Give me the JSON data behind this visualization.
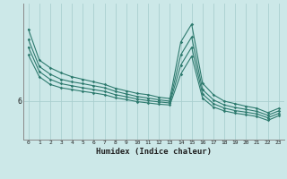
{
  "title": "",
  "xlabel": "Humidex (Indice chaleur)",
  "bg_color": "#cce8e8",
  "grid_color": "#aacfcf",
  "line_color": "#2d7a6e",
  "xlim": [
    -0.5,
    23.5
  ],
  "ylim": [
    4.5,
    9.8
  ],
  "yticks": [
    6
  ],
  "xticks": [
    0,
    1,
    2,
    3,
    4,
    5,
    6,
    7,
    8,
    9,
    10,
    11,
    12,
    13,
    14,
    15,
    16,
    17,
    18,
    19,
    20,
    21,
    22,
    23
  ],
  "series": [
    [
      8.8,
      7.6,
      7.3,
      7.1,
      6.95,
      6.85,
      6.75,
      6.65,
      6.5,
      6.4,
      6.3,
      6.25,
      6.15,
      6.1,
      8.3,
      9.0,
      6.7,
      6.25,
      6.0,
      5.9,
      5.8,
      5.72,
      5.55,
      5.72
    ],
    [
      8.4,
      7.35,
      7.05,
      6.85,
      6.75,
      6.68,
      6.6,
      6.52,
      6.38,
      6.28,
      6.18,
      6.12,
      6.05,
      6.0,
      7.8,
      8.5,
      6.45,
      6.05,
      5.85,
      5.75,
      5.68,
      5.6,
      5.45,
      5.62
    ],
    [
      8.1,
      7.15,
      6.85,
      6.68,
      6.6,
      6.52,
      6.45,
      6.38,
      6.25,
      6.17,
      6.08,
      6.02,
      5.97,
      5.93,
      7.4,
      8.1,
      6.28,
      5.9,
      5.73,
      5.63,
      5.57,
      5.5,
      5.35,
      5.52
    ],
    [
      7.8,
      6.95,
      6.65,
      6.52,
      6.45,
      6.38,
      6.32,
      6.25,
      6.13,
      6.06,
      5.98,
      5.93,
      5.88,
      5.85,
      7.05,
      7.75,
      6.12,
      5.77,
      5.62,
      5.53,
      5.47,
      5.4,
      5.25,
      5.43
    ]
  ]
}
